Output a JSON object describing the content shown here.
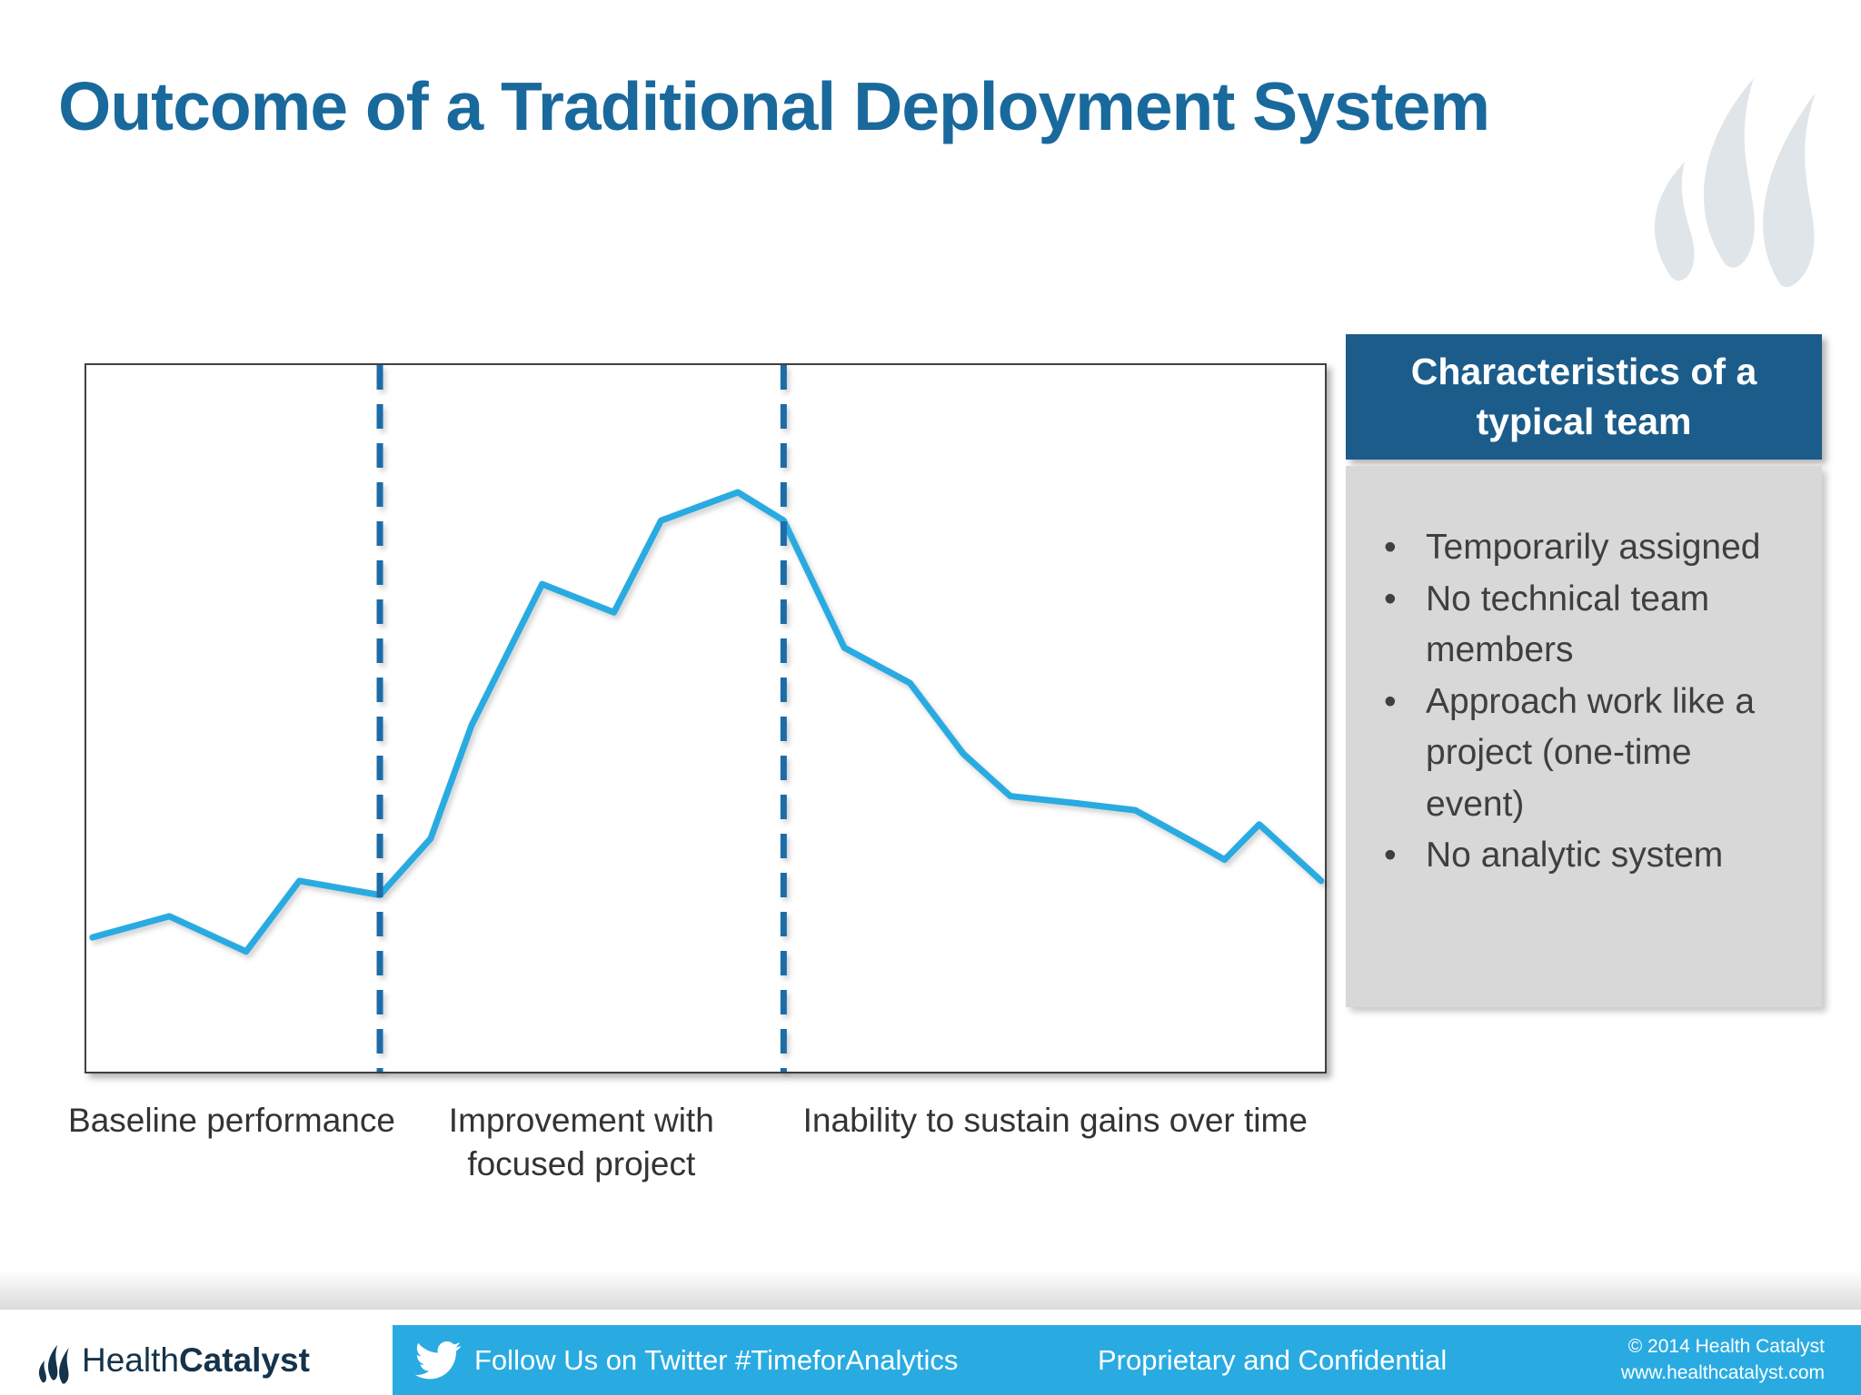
{
  "slide": {
    "title": "Outcome of a Traditional Deployment System"
  },
  "sidebar": {
    "title": "Characteristics of a typical team",
    "bullets": [
      "Temporarily assigned",
      "No technical team members",
      "Approach work like a project (one-time event)",
      "No analytic system"
    ]
  },
  "chart_data": {
    "type": "line",
    "title": "",
    "xlabel": "",
    "ylabel": "",
    "xlim": [
      0,
      100
    ],
    "ylim": [
      0,
      100
    ],
    "grid": false,
    "axes_ticks_shown": false,
    "x": [
      0.5,
      6.7,
      12.9,
      17.2,
      23.7,
      27.8,
      31.1,
      36.8,
      42.6,
      46.4,
      52.6,
      56.3,
      61.2,
      66.5,
      70.8,
      74.6,
      79.9,
      84.7,
      89.9,
      91.9,
      94.7,
      99.7
    ],
    "values": [
      19,
      22,
      17,
      27,
      25,
      33,
      49,
      69,
      65,
      78,
      82,
      78,
      60,
      55,
      45,
      39,
      38,
      37,
      32,
      30,
      35,
      27
    ],
    "dividers_x": [
      23.7,
      56.3
    ],
    "phase_labels": [
      "Baseline performance",
      "Improvement with focused project",
      "Inability to sustain gains over time"
    ],
    "series_color": "#29ABE2",
    "divider_color": "#1C6CA8"
  },
  "icons": {
    "watermark": "flame-icon",
    "footer_logo": "flame-icon",
    "twitter": "twitter-bird-icon"
  },
  "colors": {
    "title_text": "#19699C",
    "line": "#29ABE2",
    "divider": "#1C6CA8",
    "sidebar_header_bg": "#1B5C8A",
    "sidebar_body_bg": "#D8D8D8",
    "footer_bar_bg": "#29ABE2",
    "logo_text": "#15334A"
  },
  "footer": {
    "logo_regular": "Health",
    "logo_bold": "Catalyst",
    "twitter_text": "Follow Us on Twitter #TimeforAnalytics",
    "confidential_text": "Proprietary and Confidential",
    "copyright_line1": "© 2014 Health Catalyst",
    "copyright_line2": "www.healthcatalyst.com"
  }
}
